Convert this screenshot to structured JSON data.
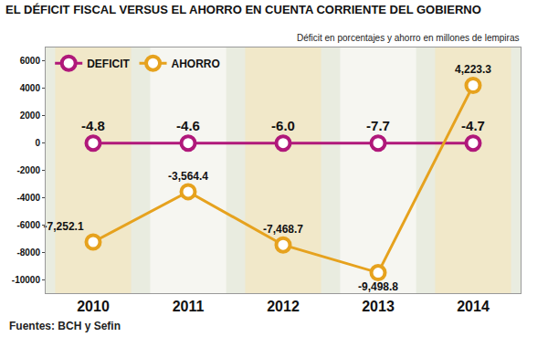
{
  "chart_data": {
    "type": "line",
    "title": "EL DÉFICIT FISCAL VERSUS EL AHORRO EN CUENTA CORRIENTE DEL GOBIERNO",
    "subtitle": "Déficit en porcentajes y ahorro en millones de lempiras",
    "source": "Fuentes: BCH y Sefin",
    "categories": [
      "2010",
      "2011",
      "2012",
      "2013",
      "2014"
    ],
    "series": [
      {
        "name": "DEFICIT",
        "color": "#b0187a",
        "values": [
          -4.8,
          -4.6,
          -6.0,
          -7.7,
          -4.7
        ],
        "value_labels": [
          "-4.8",
          "-4.6",
          "-6.0",
          "-7.7",
          "-4.7"
        ]
      },
      {
        "name": "AHORRO",
        "color": "#e6a21e",
        "values": [
          -7252.1,
          -3564.4,
          -7468.7,
          -9498.8,
          4223.3
        ],
        "value_labels": [
          "-7,252.1",
          "-3,564.4",
          "-7,468.7",
          "-9,498.8",
          "4,223.3"
        ]
      }
    ],
    "ylim": [
      -11000,
      7000
    ],
    "yticks": [
      -10000,
      -8000,
      -6000,
      -4000,
      -2000,
      0,
      2000,
      4000,
      6000
    ],
    "grid": false,
    "legend": "top left",
    "data_labels": true,
    "marker": "circle"
  }
}
